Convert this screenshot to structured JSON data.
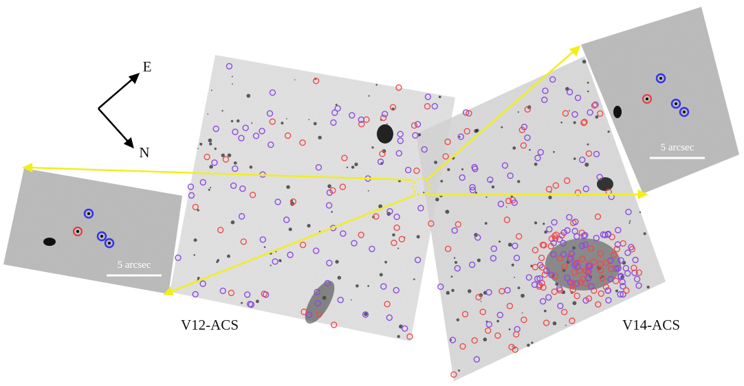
{
  "compass": {
    "east": "E",
    "north": "N"
  },
  "insets": [
    {
      "scale_label": "5 arcsec"
    },
    {
      "scale_label": "5 arcsec"
    }
  ],
  "fields": [
    {
      "label": "V12-ACS"
    },
    {
      "label": "V14-ACS"
    }
  ]
}
